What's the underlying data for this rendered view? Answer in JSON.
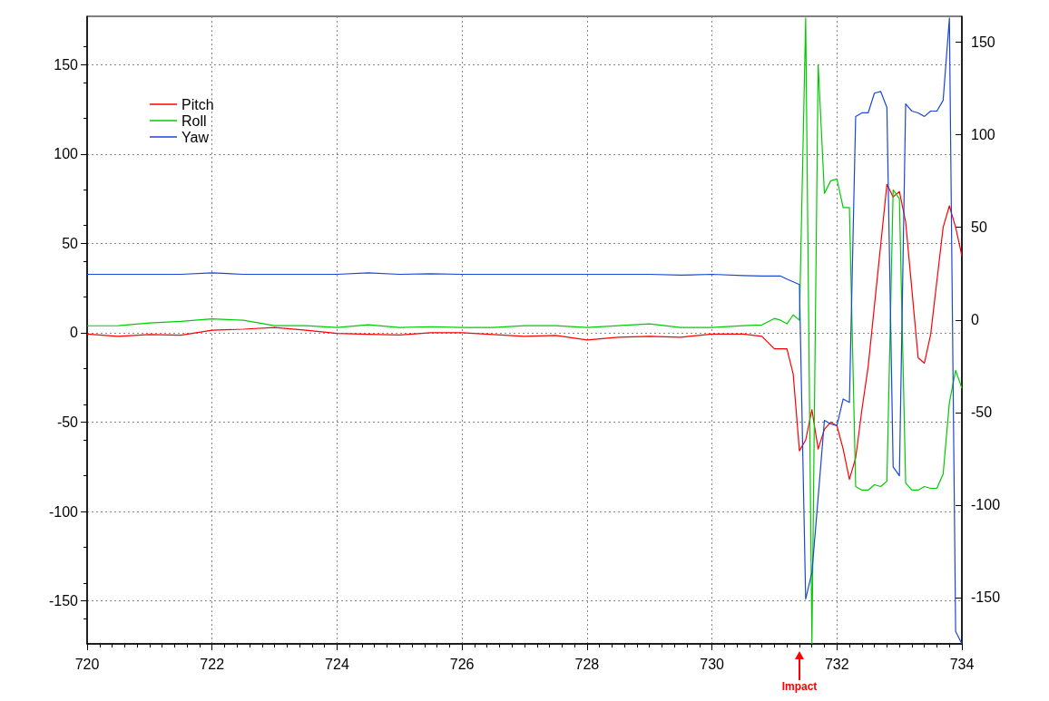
{
  "chart_data": {
    "type": "line",
    "x": [
      720,
      720.5,
      721,
      721.5,
      722,
      722.5,
      723,
      723.5,
      724,
      724.5,
      725,
      725.5,
      726,
      726.5,
      727,
      727.5,
      728,
      728.5,
      729,
      729.5,
      730,
      730.5,
      730.8,
      731.0,
      731.1,
      731.2,
      731.3,
      731.4,
      731.5,
      731.6,
      731.7,
      731.8,
      731.9,
      732.0,
      732.1,
      732.2,
      732.3,
      732.4,
      732.5,
      732.6,
      732.7,
      732.8,
      732.9,
      733.0,
      733.1,
      733.2,
      733.3,
      733.4,
      733.5,
      733.6,
      733.7,
      733.8,
      733.9,
      734.0
    ],
    "series": [
      {
        "name": "Pitch",
        "color": "#ff0000",
        "values": [
          -0.7,
          -2,
          -1,
          -1.4,
          1.4,
          2,
          3,
          1.4,
          -0.3,
          -0.8,
          -1.2,
          0,
          0,
          -1,
          -2,
          -1.5,
          -4,
          -2.5,
          -2,
          -2.5,
          -0.7,
          -0.7,
          -2,
          -9,
          -9,
          -9,
          -23,
          -66,
          -60,
          -43,
          -65,
          -54,
          -50,
          -52,
          -65,
          -82,
          -70,
          -43,
          -19,
          15,
          49,
          83,
          76,
          79,
          62,
          24,
          -14,
          -17,
          -1,
          29,
          59,
          71,
          59,
          43
        ]
      },
      {
        "name": "Roll",
        "color": "#00cc00",
        "values": [
          3.9,
          4,
          5.5,
          6.4,
          7.8,
          7,
          4,
          4,
          3,
          4.5,
          3,
          3.4,
          3,
          3,
          4,
          4,
          3,
          4,
          5,
          3,
          3,
          4,
          4.4,
          8,
          7,
          5,
          10,
          7,
          176,
          -174,
          150,
          78,
          85,
          86,
          70,
          70,
          -86,
          -88,
          -88,
          -85,
          -86,
          -83,
          80,
          75,
          -84,
          -88,
          -88,
          -86,
          -87,
          -87,
          -79,
          -39,
          -21,
          -31
        ]
      },
      {
        "name": "Yaw",
        "color": "#1a47d6",
        "values": [
          32.7,
          32.7,
          32.7,
          32.7,
          33.5,
          32.7,
          32.7,
          32.7,
          32.7,
          33.5,
          32.7,
          33,
          32.7,
          32.7,
          32.7,
          32.7,
          32.7,
          32.7,
          32.7,
          32.2,
          32.7,
          32,
          31.7,
          31.7,
          31.7,
          30,
          28.5,
          27,
          -149,
          -134,
          -92,
          -49,
          -51,
          -52,
          -37,
          -39,
          121,
          123,
          123,
          134,
          135,
          126,
          -75,
          -80,
          128,
          124,
          123,
          121,
          124,
          124,
          130,
          176,
          -167,
          -174
        ]
      }
    ],
    "xlim": [
      720,
      734
    ],
    "xticks": [
      720,
      722,
      724,
      726,
      728,
      730,
      732,
      734
    ],
    "ylim": [
      -174,
      177
    ],
    "yticks": [
      -150,
      -100,
      -50,
      0,
      50,
      100,
      150
    ],
    "y2lim": [
      -175,
      164
    ],
    "y2ticks": [
      -150,
      -100,
      -50,
      0,
      50,
      100,
      150
    ],
    "grid": true,
    "legend": "top left",
    "annotations": [
      "Impact"
    ]
  }
}
